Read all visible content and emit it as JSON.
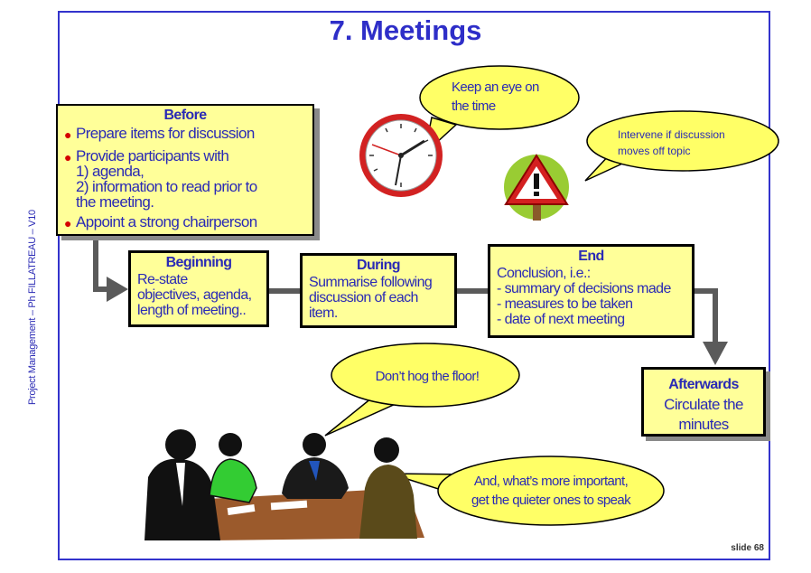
{
  "title": "7. Meetings",
  "side_label": "Project Management – Ph FILLATREAU – V10",
  "slide_label": "slide 68",
  "before": {
    "heading": "Before",
    "items": [
      "Prepare items for discussion",
      "Provide participants with\n1) agenda,\n2) information to read prior to\nthe meeting.",
      "Appoint a strong chairperson"
    ]
  },
  "beginning": {
    "heading": "Beginning",
    "text": "Re-state\nobjectives, agenda,\nlength of meeting.."
  },
  "during": {
    "heading": "During",
    "text": "Summarise following\ndiscussion of each\nitem."
  },
  "end": {
    "heading": "End",
    "text": "Conclusion, i.e.:\n- summary of decisions made\n- measures to be taken\n- date of next meeting"
  },
  "afterwards": {
    "heading": "Afterwards",
    "text": "Circulate the\nminutes"
  },
  "bubbles": {
    "time": "Keep an eye on\nthe time",
    "topic": "Intervene if discussion\nmoves off topic",
    "floor": "Don’t hog the floor!",
    "quiet": "And, what’s more important,\nget the quieter ones to speak"
  },
  "colors": {
    "box_fill": "#ffff99",
    "text": "#2a2ab5",
    "bubble_fill": "#ffff66",
    "bullet": "#d40000"
  }
}
